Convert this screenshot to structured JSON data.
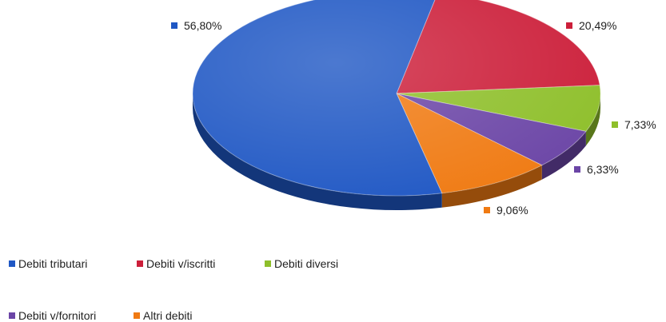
{
  "chart_data": {
    "type": "pie",
    "title": "",
    "series": [
      {
        "name": "Debiti tributari",
        "value": 56.8,
        "label": "56,80%",
        "color": "#1f57c4"
      },
      {
        "name": "Debiti v/iscritti",
        "value": 20.49,
        "label": "20,49%",
        "color": "#cc1f3a"
      },
      {
        "name": "Debiti diversi",
        "value": 7.33,
        "label": "7,33%",
        "color": "#8ebf2a"
      },
      {
        "name": "Debiti v/fornitori",
        "value": 6.33,
        "label": "6,33%",
        "color": "#6b45a6"
      },
      {
        "name": "Altri debiti",
        "value": 9.06,
        "label": "9,06%",
        "color": "#f07a12"
      }
    ],
    "legend_position": "bottom-left",
    "style": "3d-exploded-edge"
  }
}
